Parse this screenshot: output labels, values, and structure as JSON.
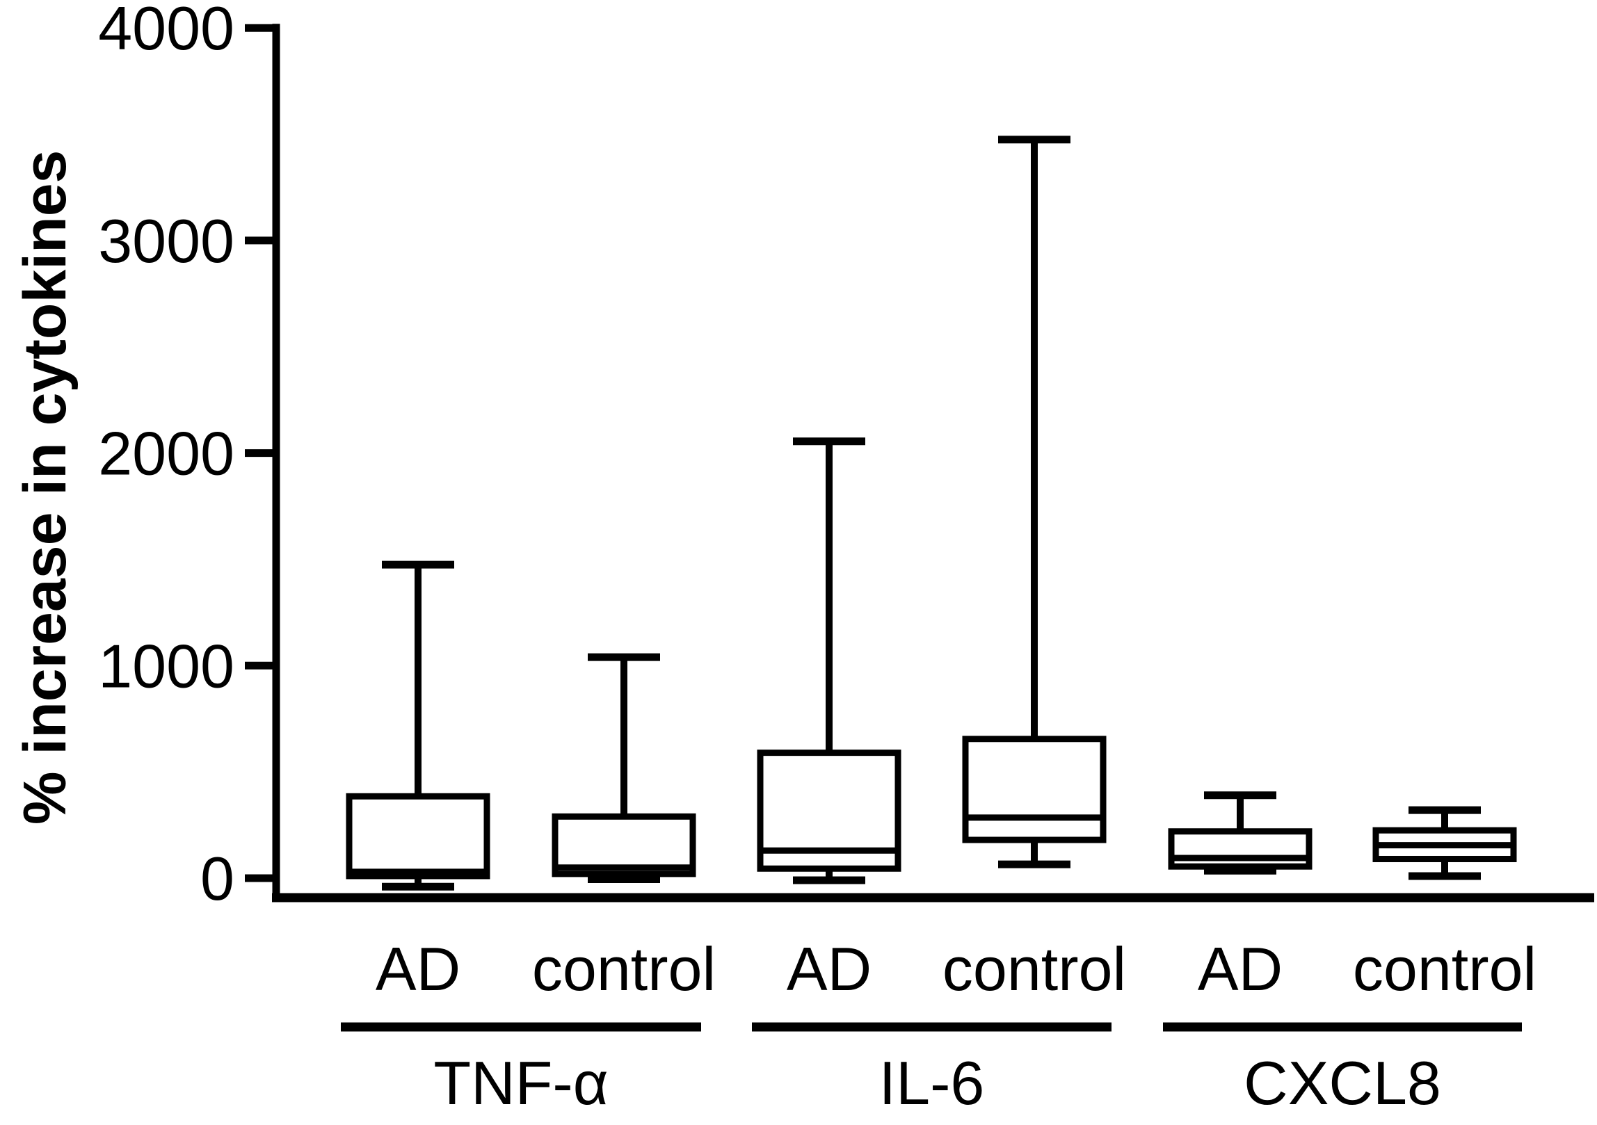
{
  "figure": {
    "background_color": "#ffffff",
    "ink_color": "#000000"
  },
  "chart_data": {
    "type": "box",
    "title": "",
    "ylabel": "% increase in cytokines",
    "xlabel": "",
    "ylim": [
      0,
      4000
    ],
    "yticks": [
      "0",
      "1000",
      "2000",
      "3000",
      "4000"
    ],
    "grid": false,
    "legend": "none",
    "box_fill": "#ffffff",
    "box_stroke": "#000000",
    "groups": [
      {
        "label": "TNF-α",
        "boxes": [
          {
            "condition": "AD",
            "whisker_low": -40,
            "q1": 10,
            "median": 30,
            "q3": 385,
            "whisker_high": 1475
          },
          {
            "condition": "control",
            "whisker_low": -5,
            "q1": 20,
            "median": 50,
            "q3": 290,
            "whisker_high": 1040
          }
        ]
      },
      {
        "label": "IL-6",
        "boxes": [
          {
            "condition": "AD",
            "whisker_low": -10,
            "q1": 45,
            "median": 130,
            "q3": 590,
            "whisker_high": 2055
          },
          {
            "condition": "control",
            "whisker_low": 65,
            "q1": 180,
            "median": 285,
            "q3": 655,
            "whisker_high": 3475
          }
        ]
      },
      {
        "label": "CXCL8",
        "boxes": [
          {
            "condition": "AD",
            "whisker_low": 35,
            "q1": 55,
            "median": 95,
            "q3": 220,
            "whisker_high": 390
          },
          {
            "condition": "control",
            "whisker_low": 10,
            "q1": 90,
            "median": 155,
            "q3": 225,
            "whisker_high": 320
          }
        ]
      }
    ]
  }
}
